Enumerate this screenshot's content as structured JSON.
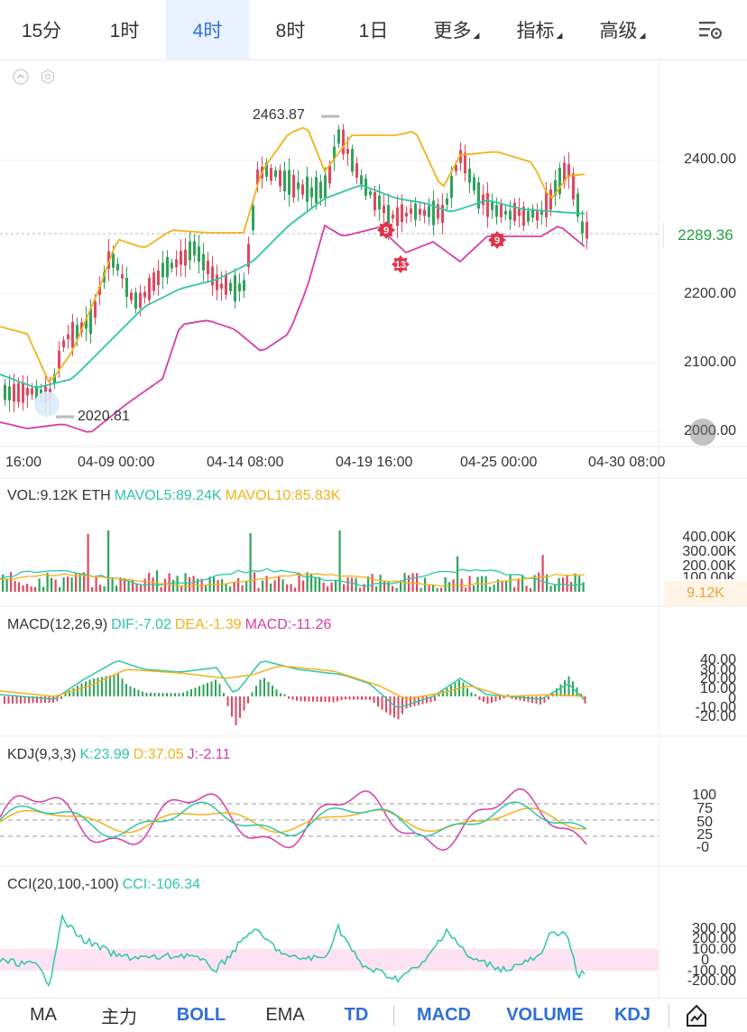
{
  "topbar": {
    "tabs": [
      {
        "label": "15分",
        "active": false,
        "dropdown": false
      },
      {
        "label": "1时",
        "active": false,
        "dropdown": false
      },
      {
        "label": "4时",
        "active": true,
        "dropdown": false
      },
      {
        "label": "8时",
        "active": false,
        "dropdown": false
      },
      {
        "label": "1日",
        "active": false,
        "dropdown": false
      },
      {
        "label": "更多",
        "active": false,
        "dropdown": true
      },
      {
        "label": "指标",
        "active": false,
        "dropdown": true
      },
      {
        "label": "高级",
        "active": false,
        "dropdown": true
      }
    ],
    "settings_icon": "chart-settings-icon"
  },
  "main_chart": {
    "max_label": "2463.87",
    "min_label": "2020.81",
    "current_price": "2289.36",
    "y_ticks": [
      "2400.00",
      "2200.00",
      "2100.00",
      "2000.00"
    ],
    "x_ticks": [
      "16:00",
      "04-09 00:00",
      "04-14 08:00",
      "04-19 16:00",
      "04-25 00:00",
      "04-30 08:00"
    ],
    "td_markers": [
      "9",
      "13",
      "9"
    ],
    "colors": {
      "up": "#2fa35a",
      "down": "#e04860",
      "upper_band": "#f3b21c",
      "mid_band": "#2ec7a6",
      "lower_band": "#d63ea8"
    }
  },
  "volume": {
    "title": "VOL:9.12K ETH",
    "mavol5": "MAVOL5:89.24K",
    "mavol10": "MAVOL10:85.83K",
    "y_ticks": [
      "400.00K",
      "300.00K",
      "200.00K",
      "100.00K"
    ],
    "current": "9.12K"
  },
  "macd": {
    "title": "MACD(12,26,9)",
    "dif": "DIF:-7.02",
    "dea": "DEA:-1.39",
    "macd": "MACD:-11.26",
    "y_ticks": [
      "40.00",
      "30.00",
      "20.00",
      "10.00",
      "0",
      "-10.00",
      "-20.00"
    ]
  },
  "kdj": {
    "title": "KDJ(9,3,3)",
    "k": "K:23.99",
    "d": "D:37.05",
    "j": "J:-2.11",
    "y_ticks": [
      "100",
      "75",
      "50",
      "25",
      "-0"
    ]
  },
  "cci": {
    "title": "CCI(20,100,-100)",
    "cci": "CCI:-106.34",
    "y_ticks": [
      "300.00",
      "200.00",
      "100.00",
      "0",
      "-100.00",
      "-200.00"
    ]
  },
  "bottombar": {
    "tabs": [
      {
        "label": "MA",
        "on": false
      },
      {
        "label": "主力",
        "on": false
      },
      {
        "label": "BOLL",
        "on": true
      },
      {
        "label": "EMA",
        "on": false
      },
      {
        "label": "TD",
        "on": true
      },
      {
        "label": "MACD",
        "on": true
      },
      {
        "label": "VOLUME",
        "on": true
      },
      {
        "label": "KDJ",
        "on": true
      }
    ],
    "drawing_icon": "drawing-tool-icon"
  }
}
